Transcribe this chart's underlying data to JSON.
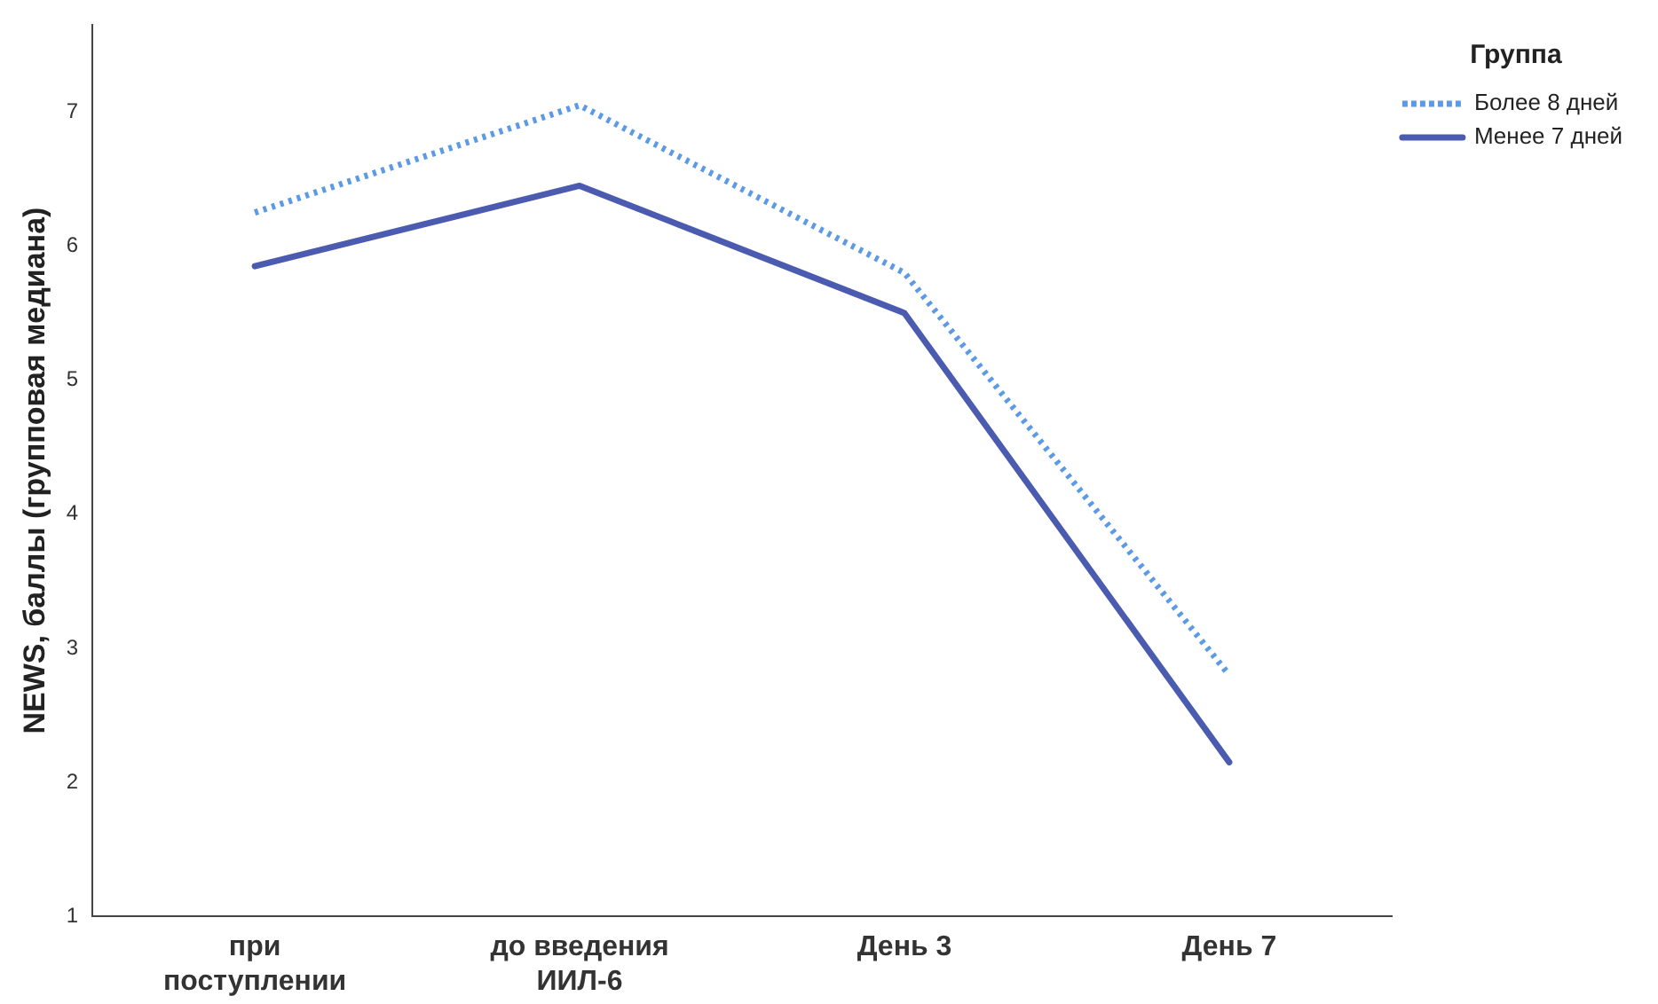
{
  "chart_data": {
    "type": "line",
    "ylabel": "NEWS, баллы (групповая медиана)",
    "legend_title": "Группа",
    "categories": [
      "при поступлении",
      "до введения ИИЛ-6",
      "День 3",
      "День 7"
    ],
    "series": [
      {
        "name": "Более 8 дней",
        "color": "#5c9ae6",
        "line_style": "dotted",
        "values": [
          6.25,
          7.05,
          5.8,
          2.8
        ]
      },
      {
        "name": "Менее 7 дней",
        "color": "#4a5bb0",
        "line_style": "solid",
        "values": [
          5.85,
          6.45,
          5.5,
          2.15
        ]
      }
    ],
    "ylim": [
      1,
      7.65
    ],
    "yticks": [
      1,
      2,
      3,
      4,
      5,
      6,
      7
    ],
    "grid": false,
    "legend": "top right",
    "marker": "none"
  }
}
